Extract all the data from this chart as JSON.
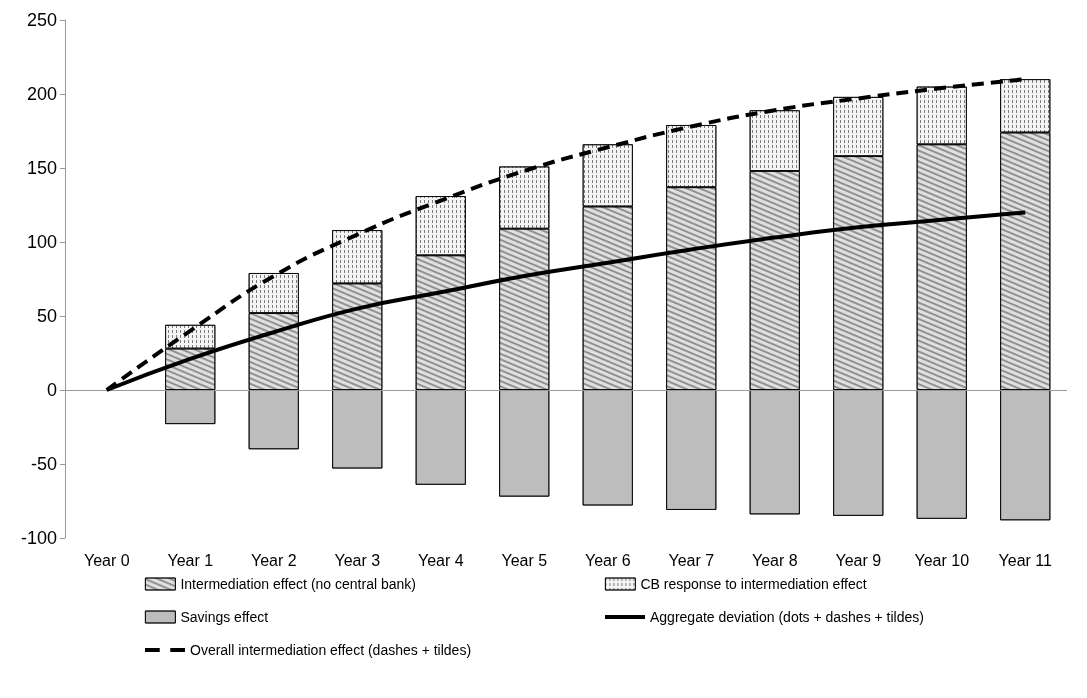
{
  "chart_data": {
    "type": "bar",
    "stacked": true,
    "categories": [
      "Year 0",
      "Year 1",
      "Year 2",
      "Year 3",
      "Year 4",
      "Year 5",
      "Year 6",
      "Year 7",
      "Year 8",
      "Year 9",
      "Year 10",
      "Year 11"
    ],
    "series": [
      {
        "name": "Intermediation effect (no central bank)",
        "color": "#e0e0e0",
        "values": [
          null,
          28,
          52,
          72,
          91,
          109,
          124,
          137,
          148,
          158,
          166,
          174
        ]
      },
      {
        "name": "CB response to intermediation effect",
        "color": "#f4f4f4",
        "values": [
          null,
          16,
          27,
          36,
          40,
          42,
          42,
          42,
          41,
          40,
          39,
          36
        ]
      },
      {
        "name": "Savings effect",
        "color": "#bdbdbd",
        "values": [
          null,
          -23,
          -40,
          -53,
          -64,
          -72,
          -78,
          -81,
          -84,
          -85,
          -87,
          -88
        ]
      },
      {
        "name": "Aggregate deviation (dots + dashes + tildes)",
        "type": "line",
        "color": "#000000",
        "line_style": "solid",
        "values": [
          0,
          21,
          39,
          55,
          66,
          77,
          86,
          95,
          103,
          110,
          115,
          120
        ]
      },
      {
        "name": "Overall intermediation effect (dashes + tildes)",
        "type": "line",
        "color": "#000000",
        "line_style": "dashed",
        "values": [
          0,
          40,
          77,
          105,
          128,
          148,
          164,
          178,
          189,
          197,
          204,
          210
        ]
      }
    ],
    "ylim": [
      -100,
      250
    ],
    "yticks": [
      -100,
      -50,
      0,
      50,
      100,
      150,
      200,
      250
    ],
    "ref_lines": [
      {
        "axis": "y",
        "value": 0,
        "color": "#999999"
      }
    ],
    "grid": false,
    "legend": "bottom",
    "marker": "none"
  }
}
